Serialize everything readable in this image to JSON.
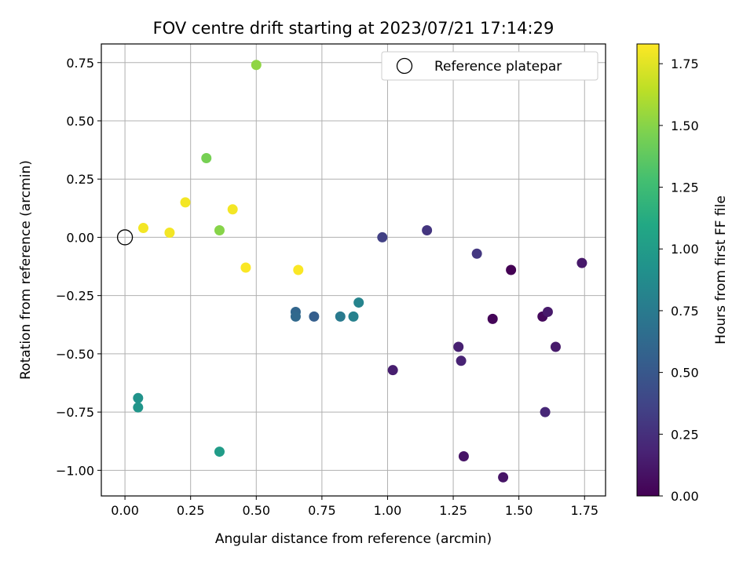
{
  "chart_data": {
    "type": "scatter",
    "title": "FOV centre drift starting at 2023/07/21 17:14:29",
    "xlabel": "Angular distance from reference (arcmin)",
    "ylabel": "Rotation from reference (arcmin)",
    "xlim": [
      -0.09,
      1.83
    ],
    "ylim": [
      -1.11,
      0.83
    ],
    "xticks": [
      0.0,
      0.25,
      0.5,
      0.75,
      1.0,
      1.25,
      1.5,
      1.75
    ],
    "xtick_labels": [
      "0.00",
      "0.25",
      "0.50",
      "0.75",
      "1.00",
      "1.25",
      "1.50",
      "1.75"
    ],
    "yticks": [
      0.75,
      0.5,
      0.25,
      0.0,
      -0.25,
      -0.5,
      -0.75,
      -1.0
    ],
    "ytick_labels": [
      "0.75",
      "0.50",
      "0.25",
      "0.00",
      "−0.25",
      "−0.50",
      "−0.75",
      "−1.00"
    ],
    "grid": true,
    "legend": {
      "placement": "top-right",
      "entries": [
        "Reference platepar"
      ]
    },
    "reference_point": {
      "x": 0.0,
      "y": 0.0
    },
    "colorbar": {
      "label": "Hours from first FF file",
      "colormap": "viridis",
      "range": [
        0.0,
        1.83
      ],
      "ticks": [
        0.0,
        0.25,
        0.5,
        0.75,
        1.0,
        1.25,
        1.5,
        1.75
      ],
      "tick_labels": [
        "0.00",
        "0.25",
        "0.50",
        "0.75",
        "1.00",
        "1.25",
        "1.50",
        "1.75"
      ]
    },
    "points": [
      {
        "x": 1.47,
        "y": -0.14,
        "c": 0.0
      },
      {
        "x": 1.4,
        "y": -0.35,
        "c": 0.02
      },
      {
        "x": 1.59,
        "y": -0.34,
        "c": 0.04
      },
      {
        "x": 1.44,
        "y": -1.03,
        "c": 0.1
      },
      {
        "x": 1.29,
        "y": -0.94,
        "c": 0.1
      },
      {
        "x": 1.74,
        "y": -0.11,
        "c": 0.12
      },
      {
        "x": 1.64,
        "y": -0.47,
        "c": 0.13
      },
      {
        "x": 1.61,
        "y": -0.32,
        "c": 0.13
      },
      {
        "x": 1.02,
        "y": -0.57,
        "c": 0.15
      },
      {
        "x": 1.27,
        "y": -0.47,
        "c": 0.16
      },
      {
        "x": 1.28,
        "y": -0.53,
        "c": 0.18
      },
      {
        "x": 1.6,
        "y": -0.75,
        "c": 0.2
      },
      {
        "x": 1.15,
        "y": 0.03,
        "c": 0.28
      },
      {
        "x": 1.34,
        "y": -0.07,
        "c": 0.3
      },
      {
        "x": 0.98,
        "y": 0.0,
        "c": 0.35
      },
      {
        "x": 0.72,
        "y": -0.34,
        "c": 0.55
      },
      {
        "x": 0.65,
        "y": -0.32,
        "c": 0.6
      },
      {
        "x": 0.65,
        "y": -0.34,
        "c": 0.62
      },
      {
        "x": 0.82,
        "y": -0.34,
        "c": 0.75
      },
      {
        "x": 0.87,
        "y": -0.34,
        "c": 0.8
      },
      {
        "x": 0.89,
        "y": -0.28,
        "c": 0.82
      },
      {
        "x": 0.05,
        "y": -0.69,
        "c": 0.93
      },
      {
        "x": 0.05,
        "y": -0.73,
        "c": 0.95
      },
      {
        "x": 0.36,
        "y": -0.92,
        "c": 1.0
      },
      {
        "x": 0.31,
        "y": 0.34,
        "c": 1.45
      },
      {
        "x": 0.36,
        "y": 0.03,
        "c": 1.5
      },
      {
        "x": 0.5,
        "y": 0.74,
        "c": 1.52
      },
      {
        "x": 0.07,
        "y": 0.04,
        "c": 1.8
      },
      {
        "x": 0.17,
        "y": 0.02,
        "c": 1.8
      },
      {
        "x": 0.23,
        "y": 0.15,
        "c": 1.8
      },
      {
        "x": 0.41,
        "y": 0.12,
        "c": 1.8
      },
      {
        "x": 0.46,
        "y": -0.13,
        "c": 1.82
      },
      {
        "x": 0.66,
        "y": -0.14,
        "c": 1.82
      }
    ]
  }
}
